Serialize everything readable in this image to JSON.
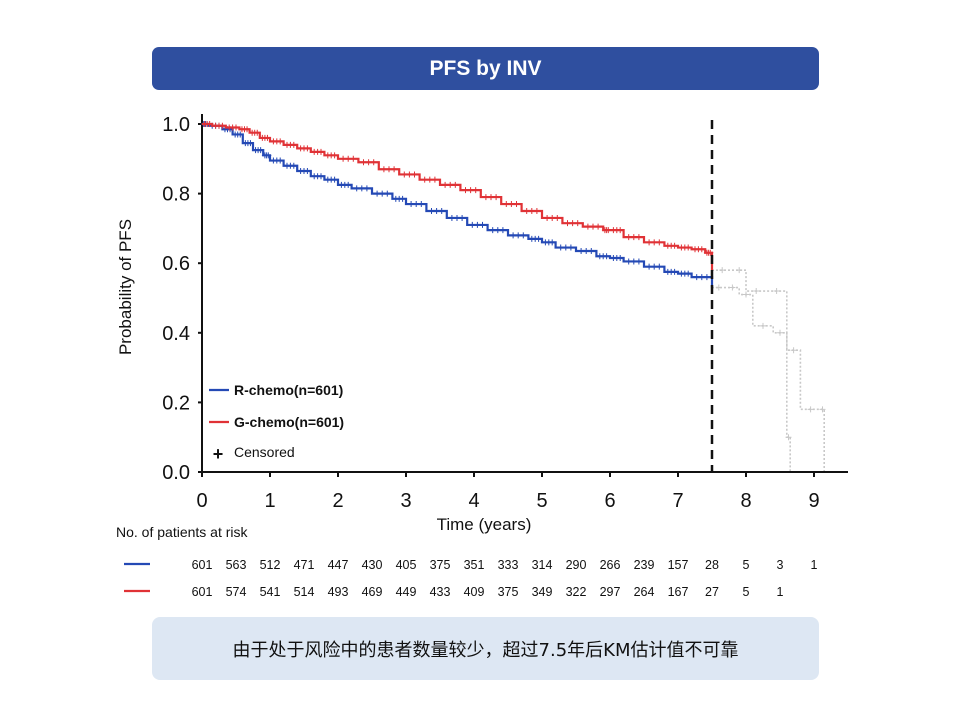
{
  "header": {
    "title": "PFS by INV"
  },
  "chart_data": {
    "type": "line",
    "subtype": "kaplan-meier",
    "ylabel": "Probability of PFS",
    "xlabel": "Time (years)",
    "xlim": [
      0,
      9.5
    ],
    "ylim": [
      0,
      1.0
    ],
    "x_ticks": [
      "0",
      "1",
      "2",
      "3",
      "4",
      "5",
      "6",
      "7",
      "8",
      "9"
    ],
    "y_ticks": [
      "0.0",
      "0.2",
      "0.4",
      "0.6",
      "0.8",
      "1.0"
    ],
    "cutoff_line_x": 7.5,
    "series": [
      {
        "name": "R-chemo(n=601)",
        "color": "#2449b5",
        "x": [
          0,
          0.1,
          0.3,
          0.45,
          0.6,
          0.75,
          0.9,
          1.0,
          1.2,
          1.4,
          1.6,
          1.8,
          2.0,
          2.2,
          2.5,
          2.8,
          3.0,
          3.3,
          3.6,
          3.9,
          4.2,
          4.5,
          4.8,
          5.0,
          5.2,
          5.5,
          5.8,
          6.0,
          6.2,
          6.5,
          6.8,
          7.0,
          7.2,
          7.5
        ],
        "y": [
          1.0,
          0.995,
          0.985,
          0.97,
          0.945,
          0.925,
          0.91,
          0.895,
          0.88,
          0.865,
          0.85,
          0.84,
          0.825,
          0.815,
          0.8,
          0.785,
          0.77,
          0.75,
          0.73,
          0.71,
          0.695,
          0.68,
          0.67,
          0.66,
          0.645,
          0.635,
          0.62,
          0.615,
          0.605,
          0.59,
          0.575,
          0.57,
          0.56,
          0.53
        ]
      },
      {
        "name": "G-chemo(n=601)",
        "color": "#e03236",
        "x": [
          0,
          0.15,
          0.35,
          0.55,
          0.7,
          0.85,
          1.0,
          1.2,
          1.4,
          1.6,
          1.8,
          2.0,
          2.3,
          2.6,
          2.9,
          3.2,
          3.5,
          3.8,
          4.1,
          4.4,
          4.7,
          5.0,
          5.3,
          5.6,
          5.9,
          6.0,
          6.2,
          6.5,
          6.8,
          7.0,
          7.2,
          7.4,
          7.5
        ],
        "y": [
          1.0,
          0.995,
          0.99,
          0.985,
          0.975,
          0.96,
          0.95,
          0.94,
          0.93,
          0.92,
          0.91,
          0.9,
          0.89,
          0.87,
          0.855,
          0.84,
          0.825,
          0.81,
          0.79,
          0.77,
          0.75,
          0.73,
          0.715,
          0.705,
          0.695,
          0.695,
          0.675,
          0.66,
          0.65,
          0.645,
          0.64,
          0.63,
          0.58
        ]
      }
    ],
    "extrapolated_grey": [
      {
        "name": "R-chemo tail",
        "x": [
          7.5,
          7.7,
          7.9,
          8.1,
          8.4,
          8.6,
          8.65
        ],
        "y": [
          0.53,
          0.53,
          0.51,
          0.42,
          0.4,
          0.1,
          0.0
        ]
      },
      {
        "name": "G-chemo tail",
        "x": [
          7.5,
          7.8,
          8.0,
          8.3,
          8.6,
          8.8,
          9.1,
          9.15
        ],
        "y": [
          0.58,
          0.58,
          0.52,
          0.52,
          0.35,
          0.18,
          0.18,
          0.0
        ]
      }
    ],
    "legend": [
      {
        "label": "R-chemo(n=601)",
        "color": "#2449b5",
        "symbol": "line"
      },
      {
        "label": "G-chemo(n=601)",
        "color": "#e03236",
        "symbol": "line"
      },
      {
        "label": "Censored",
        "color": "#111111",
        "symbol": "+"
      }
    ],
    "at_risk": {
      "title": "No. of patients at risk",
      "rows": [
        {
          "color": "#2449b5",
          "values": [
            "601",
            "563",
            "512",
            "471",
            "447",
            "430",
            "405",
            "375",
            "351",
            "333",
            "314",
            "290",
            "266",
            "239",
            "157",
            "28",
            "5",
            "3",
            "1"
          ]
        },
        {
          "color": "#e03236",
          "values": [
            "601",
            "574",
            "541",
            "514",
            "493",
            "469",
            "449",
            "433",
            "409",
            "375",
            "349",
            "322",
            "297",
            "264",
            "167",
            "27",
            "5",
            "1"
          ]
        }
      ]
    }
  },
  "footer": {
    "note": "由于处于风险中的患者数量较少，超过7.5年后KM估计值不可靠"
  }
}
